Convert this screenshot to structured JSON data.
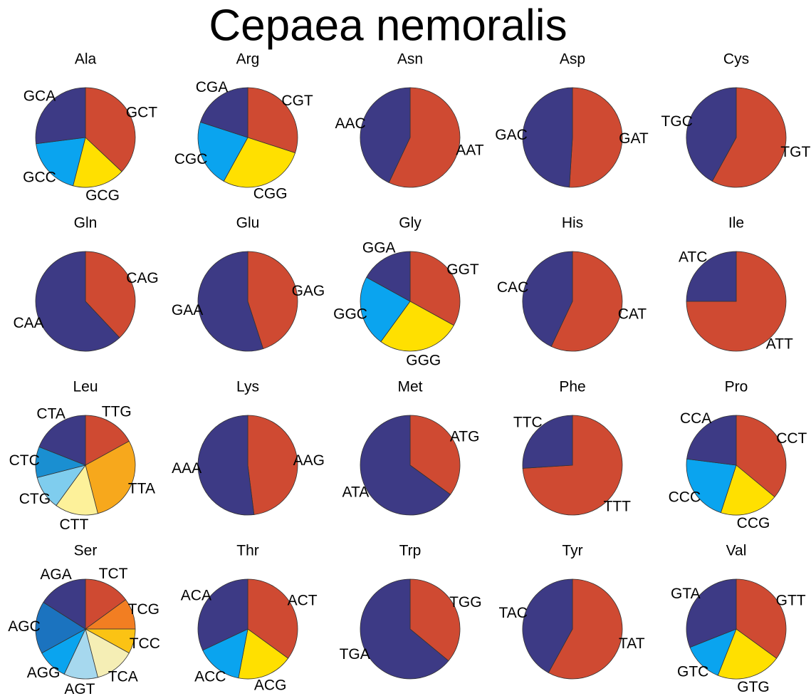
{
  "title": "Cepaea nemoralis",
  "chart_data": [
    {
      "type": "pie",
      "title": "Ala",
      "categories": [
        "GCT",
        "GCG",
        "GCC",
        "GCA"
      ],
      "values": [
        37,
        17,
        19,
        27
      ],
      "colors": [
        "#cf4a32",
        "#ffe000",
        "#0aa4ef",
        "#3d3a85"
      ]
    },
    {
      "type": "pie",
      "title": "Arg",
      "categories": [
        "CGT",
        "CGG",
        "CGC",
        "CGA"
      ],
      "values": [
        30,
        28,
        22,
        20
      ],
      "colors": [
        "#cf4a32",
        "#ffe000",
        "#0aa4ef",
        "#3d3a85"
      ]
    },
    {
      "type": "pie",
      "title": "Asn",
      "categories": [
        "AAT",
        "AAC"
      ],
      "values": [
        57,
        43
      ],
      "colors": [
        "#cf4a32",
        "#3d3a85"
      ]
    },
    {
      "type": "pie",
      "title": "Asp",
      "categories": [
        "GAT",
        "GAC"
      ],
      "values": [
        51,
        49
      ],
      "colors": [
        "#cf4a32",
        "#3d3a85"
      ]
    },
    {
      "type": "pie",
      "title": "Cys",
      "categories": [
        "TGT",
        "TGC"
      ],
      "values": [
        58,
        42
      ],
      "colors": [
        "#cf4a32",
        "#3d3a85"
      ]
    },
    {
      "type": "pie",
      "title": "Gln",
      "categories": [
        "CAG",
        "CAA"
      ],
      "values": [
        38,
        62
      ],
      "colors": [
        "#cf4a32",
        "#3d3a85"
      ]
    },
    {
      "type": "pie",
      "title": "Glu",
      "categories": [
        "GAG",
        "GAA"
      ],
      "values": [
        45,
        55
      ],
      "colors": [
        "#cf4a32",
        "#3d3a85"
      ]
    },
    {
      "type": "pie",
      "title": "Gly",
      "categories": [
        "GGT",
        "GGG",
        "GGC",
        "GGA"
      ],
      "values": [
        33,
        27,
        23,
        17
      ],
      "colors": [
        "#cf4a32",
        "#ffe000",
        "#0aa4ef",
        "#3d3a85"
      ]
    },
    {
      "type": "pie",
      "title": "His",
      "categories": [
        "CAT",
        "CAC"
      ],
      "values": [
        57,
        43
      ],
      "colors": [
        "#cf4a32",
        "#3d3a85"
      ]
    },
    {
      "type": "pie",
      "title": "Ile",
      "categories": [
        "ATT",
        "ATC"
      ],
      "values": [
        75,
        25
      ],
      "colors": [
        "#cf4a32",
        "#3d3a85"
      ]
    },
    {
      "type": "pie",
      "title": "Leu",
      "categories": [
        "TTG",
        "TTA",
        "CTT",
        "CTG",
        "CTC",
        "CTA"
      ],
      "values": [
        17,
        29,
        14,
        11,
        10,
        19
      ],
      "colors": [
        "#cf4a32",
        "#f7a81c",
        "#fdf19a",
        "#7fcdee",
        "#1a8fd1",
        "#3d3a85"
      ]
    },
    {
      "type": "pie",
      "title": "Lys",
      "categories": [
        "AAG",
        "AAA"
      ],
      "values": [
        48,
        52
      ],
      "colors": [
        "#cf4a32",
        "#3d3a85"
      ]
    },
    {
      "type": "pie",
      "title": "Met",
      "categories": [
        "ATG",
        "ATA"
      ],
      "values": [
        35,
        65
      ],
      "colors": [
        "#cf4a32",
        "#3d3a85"
      ]
    },
    {
      "type": "pie",
      "title": "Phe",
      "categories": [
        "TTT",
        "TTC"
      ],
      "values": [
        74,
        26
      ],
      "colors": [
        "#cf4a32",
        "#3d3a85"
      ]
    },
    {
      "type": "pie",
      "title": "Pro",
      "categories": [
        "CCT",
        "CCG",
        "CCC",
        "CCA"
      ],
      "values": [
        36,
        19,
        22,
        23
      ],
      "colors": [
        "#cf4a32",
        "#ffe000",
        "#0aa4ef",
        "#3d3a85"
      ]
    },
    {
      "type": "pie",
      "title": "Ser",
      "categories": [
        "TCT",
        "TCG",
        "TCC",
        "TCA",
        "AGT",
        "AGG",
        "AGC",
        "AGA"
      ],
      "values": [
        15,
        10,
        8,
        13,
        11,
        10,
        17,
        16
      ],
      "colors": [
        "#cf4a32",
        "#f27e22",
        "#fbc314",
        "#f5eeb5",
        "#a6d8ee",
        "#0aa4ef",
        "#1b73bf",
        "#3d3a85"
      ]
    },
    {
      "type": "pie",
      "title": "Thr",
      "categories": [
        "ACT",
        "ACG",
        "ACC",
        "ACA"
      ],
      "values": [
        35,
        18,
        15,
        32
      ],
      "colors": [
        "#cf4a32",
        "#ffe000",
        "#0aa4ef",
        "#3d3a85"
      ]
    },
    {
      "type": "pie",
      "title": "Trp",
      "categories": [
        "TGG",
        "TGA"
      ],
      "values": [
        36,
        64
      ],
      "colors": [
        "#cf4a32",
        "#3d3a85"
      ]
    },
    {
      "type": "pie",
      "title": "Tyr",
      "categories": [
        "TAT",
        "TAC"
      ],
      "values": [
        58,
        42
      ],
      "colors": [
        "#cf4a32",
        "#3d3a85"
      ]
    },
    {
      "type": "pie",
      "title": "Val",
      "categories": [
        "GTT",
        "GTG",
        "GTC",
        "GTA"
      ],
      "values": [
        35,
        21,
        13,
        31
      ],
      "colors": [
        "#cf4a32",
        "#ffe000",
        "#0aa4ef",
        "#3d3a85"
      ]
    }
  ]
}
